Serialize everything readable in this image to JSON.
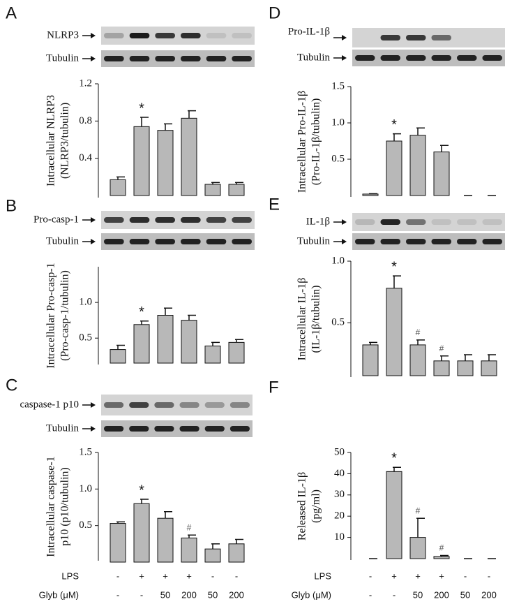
{
  "chart_data": [
    {
      "type": "bar",
      "panel": "A",
      "blot_labels": [
        "NLRP3",
        "Tubulin"
      ],
      "ylabel": [
        "Intracellular NLRP3",
        "(NLRP3/tubulin)"
      ],
      "color": "#b8b8b8",
      "ylim": [
        0,
        1.2
      ],
      "yticks": [
        0.4,
        0.8,
        1.2
      ],
      "values": [
        0.17,
        0.74,
        0.7,
        0.83,
        0.12,
        0.12
      ],
      "errors": [
        0.03,
        0.1,
        0.07,
        0.08,
        0.02,
        0.02
      ],
      "annotations": [
        null,
        "*",
        null,
        null,
        null,
        null
      ]
    },
    {
      "type": "bar",
      "panel": "B",
      "blot_labels": [
        "Pro-casp-1",
        "Tubulin"
      ],
      "ylabel": [
        "Intracellular Pro-casp-1",
        "(Pro-casp-1/tubulin)"
      ],
      "color": "#b8b8b8",
      "ylim": [
        0.15,
        1.5
      ],
      "yticks": [
        0.5,
        {
          "value": 1,
          "label": "1.0"
        }
      ],
      "values": [
        0.34,
        0.69,
        0.82,
        0.75,
        0.39,
        0.44
      ],
      "errors": [
        0.06,
        0.05,
        0.1,
        0.07,
        0.05,
        0.04
      ],
      "annotations": [
        null,
        "*",
        null,
        null,
        null,
        null
      ]
    },
    {
      "type": "bar",
      "panel": "C",
      "blot_labels": [
        "caspase-1 p10",
        "Tubulin"
      ],
      "ylabel": [
        "Intracellular caspase-1",
        "p10 (p10/tubulin)"
      ],
      "color": "#b8b8b8",
      "ylim": [
        0,
        1.5
      ],
      "yticks": [
        0.5,
        {
          "value": 1,
          "label": "1.0"
        },
        1.5
      ],
      "values": [
        0.53,
        0.8,
        0.6,
        0.33,
        0.18,
        0.25
      ],
      "errors": [
        0.02,
        0.06,
        0.09,
        0.04,
        0.07,
        0.06
      ],
      "annotations": [
        null,
        "*",
        null,
        "#",
        null,
        null
      ]
    },
    {
      "type": "bar",
      "panel": "D",
      "blot_labels": [
        "Pro-IL-1β",
        "Tubulin"
      ],
      "ylabel": [
        "Intracellular Pro-IL-1β",
        "(Pro-IL-1β/tubulin)"
      ],
      "color": "#b8b8b8",
      "ylim": [
        0,
        1.5
      ],
      "yticks": [
        0.5,
        {
          "value": 1,
          "label": "1.0"
        },
        1.5
      ],
      "values": [
        0.02,
        0.75,
        0.83,
        0.6,
        0,
        0
      ],
      "errors": [
        0.005,
        0.1,
        0.1,
        0.09,
        0,
        0
      ],
      "annotations": [
        null,
        "*",
        null,
        null,
        null,
        null
      ]
    },
    {
      "type": "bar",
      "panel": "E",
      "blot_labels": [
        "IL-1β",
        "Tubulin"
      ],
      "ylabel": [
        "Intracellular IL-1β",
        "(IL-1β/tubulin)"
      ],
      "color": "#b8b8b8",
      "ylim": [
        0.07,
        1
      ],
      "yticks": [
        0.5,
        {
          "value": 1,
          "label": "1.0"
        }
      ],
      "values": [
        0.32,
        0.78,
        0.32,
        0.19,
        0.19,
        0.19
      ],
      "errors": [
        0.02,
        0.1,
        0.04,
        0.04,
        0.05,
        0.05
      ],
      "annotations": [
        null,
        "*",
        "#",
        "#",
        null,
        null
      ]
    },
    {
      "type": "bar",
      "panel": "F",
      "ylabel": [
        "Released IL-1β",
        "(pg/ml)"
      ],
      "color": "#b8b8b8",
      "ylim": [
        0,
        50
      ],
      "yticks": [
        10,
        20,
        30,
        40,
        50
      ],
      "values": [
        0,
        41,
        10,
        1,
        0,
        0
      ],
      "errors": [
        0,
        2,
        9,
        0.5,
        0,
        0
      ],
      "annotations": [
        null,
        "*",
        "#",
        "#",
        null,
        null
      ]
    }
  ],
  "treatment": {
    "rows": [
      {
        "label": "LPS",
        "values": [
          "-",
          "+",
          "+",
          "+",
          "-",
          "-"
        ]
      },
      {
        "label": "Glyb (μM)",
        "values": [
          "-",
          "-",
          "50",
          "200",
          "50",
          "200"
        ]
      }
    ]
  }
}
